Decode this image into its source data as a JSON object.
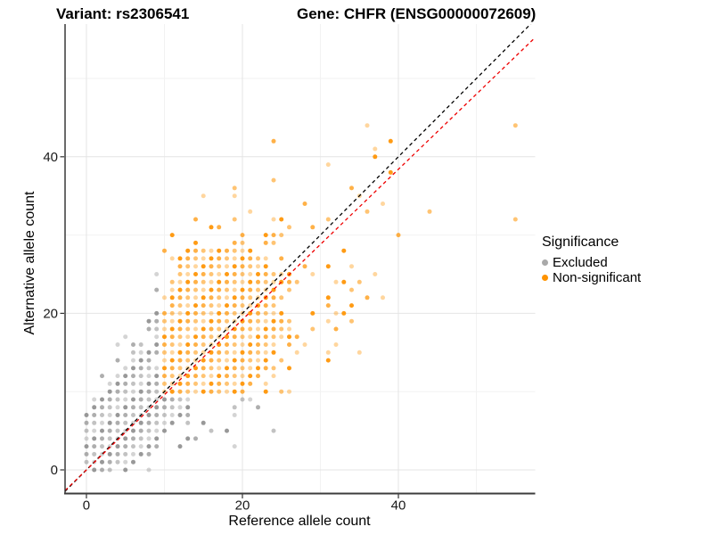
{
  "titles": {
    "variant": "Variant: rs2306541",
    "gene": "Gene: CHFR (ENSG00000072609)"
  },
  "legend": {
    "title": "Significance",
    "items": [
      {
        "label": "Excluded",
        "color": "#A9A9A9"
      },
      {
        "label": "Non-significant",
        "color": "#FF9300"
      }
    ]
  },
  "chart_data": {
    "type": "scatter",
    "title": "Variant: rs2306541 / Gene: CHFR (ENSG00000072609)",
    "xlabel": "Reference allele count",
    "ylabel": "Alternative allele count",
    "xlim": [
      -2.74,
      57.54
    ],
    "ylim": [
      -3.02,
      56.95
    ],
    "x_ticks": [
      0,
      20,
      40
    ],
    "y_ticks": [
      0,
      20,
      40
    ],
    "x_minor": [
      10,
      30,
      50
    ],
    "y_minor": [
      10,
      30,
      50
    ],
    "grid": "on",
    "legend_position": "right",
    "lines": [
      {
        "name": "identity",
        "color": "#000000",
        "slope": 1.0,
        "intercept": 0,
        "dashed": true
      },
      {
        "name": "fit",
        "color": "#EE0000",
        "slope": 0.96,
        "intercept": 0,
        "dashed": true
      }
    ],
    "series": [
      {
        "name": "Excluded",
        "color": "#8F8F8F",
        "rows": [
          {
            "y": 0,
            "x": [
              1,
              2,
              3,
              5,
              8
            ]
          },
          {
            "y": 1,
            "x": [
              0,
              1,
              2,
              3,
              4,
              5,
              6
            ]
          },
          {
            "y": 2,
            "x": [
              0,
              1,
              2,
              3,
              4,
              5,
              6,
              7,
              8
            ]
          },
          {
            "y": 3,
            "x": [
              0,
              1,
              2,
              3,
              4,
              5,
              6,
              7,
              8,
              9,
              12,
              19
            ]
          },
          {
            "y": 4,
            "x": [
              0,
              1,
              2,
              3,
              4,
              5,
              6,
              7,
              8,
              9,
              13,
              14
            ]
          },
          {
            "y": 5,
            "x": [
              0,
              1,
              2,
              3,
              4,
              5,
              6,
              7,
              8,
              9,
              10,
              16,
              18,
              24
            ]
          },
          {
            "y": 6,
            "x": [
              0,
              1,
              2,
              3,
              4,
              5,
              6,
              7,
              8,
              9,
              10,
              11,
              13,
              15
            ]
          },
          {
            "y": 7,
            "x": [
              0,
              1,
              2,
              3,
              4,
              5,
              6,
              7,
              8,
              9,
              10,
              11,
              12,
              13,
              19
            ]
          },
          {
            "y": 8,
            "x": [
              1,
              2,
              3,
              4,
              5,
              6,
              7,
              8,
              9,
              10,
              11,
              12,
              13,
              19,
              22
            ]
          },
          {
            "y": 9,
            "x": [
              1,
              2,
              3,
              4,
              5,
              6,
              7,
              8,
              9,
              10,
              11,
              12,
              13,
              20,
              21
            ]
          },
          {
            "y": 10,
            "x": [
              3,
              4,
              5,
              6,
              7,
              8,
              9
            ]
          },
          {
            "y": 11,
            "x": [
              3,
              4,
              5,
              6,
              7,
              8,
              9
            ]
          },
          {
            "y": 12,
            "x": [
              2,
              4,
              5,
              6,
              7,
              8,
              9
            ]
          },
          {
            "y": 13,
            "x": [
              5,
              6,
              7,
              8,
              9
            ]
          },
          {
            "y": 14,
            "x": [
              4,
              6,
              7,
              8
            ]
          },
          {
            "y": 15,
            "x": [
              6,
              7,
              8,
              9
            ]
          },
          {
            "y": 16,
            "x": [
              4,
              6,
              7,
              9
            ]
          },
          {
            "y": 17,
            "x": [
              5,
              9
            ]
          },
          {
            "y": 18,
            "x": [
              8,
              9
            ]
          },
          {
            "y": 19,
            "x": [
              8,
              9
            ]
          },
          {
            "y": 20,
            "x": [
              9
            ]
          },
          {
            "y": 23,
            "x": [
              9
            ]
          },
          {
            "y": 25,
            "x": [
              9
            ]
          }
        ]
      },
      {
        "name": "Non-significant",
        "color": "#FF9300",
        "rows": [
          {
            "y": 10,
            "x": [
              10,
              11,
              12,
              13,
              14,
              15,
              16,
              17,
              18,
              19,
              20,
              23,
              25,
              26
            ]
          },
          {
            "y": 11,
            "x": [
              10,
              11,
              12,
              13,
              14,
              15,
              16,
              17,
              18,
              19,
              20,
              21,
              23
            ]
          },
          {
            "y": 12,
            "x": [
              10,
              11,
              12,
              13,
              14,
              15,
              16,
              17,
              18,
              19,
              20,
              21,
              22,
              24
            ]
          },
          {
            "y": 13,
            "x": [
              10,
              11,
              12,
              13,
              14,
              15,
              16,
              17,
              18,
              19,
              20,
              21,
              22,
              23,
              24,
              26
            ]
          },
          {
            "y": 14,
            "x": [
              10,
              11,
              12,
              13,
              14,
              15,
              16,
              17,
              18,
              19,
              20,
              21,
              22,
              23,
              25,
              31
            ]
          },
          {
            "y": 15,
            "x": [
              10,
              11,
              12,
              13,
              14,
              15,
              16,
              17,
              18,
              19,
              20,
              21,
              22,
              23,
              24,
              27,
              31,
              35
            ]
          },
          {
            "y": 16,
            "x": [
              10,
              11,
              12,
              13,
              14,
              15,
              16,
              17,
              18,
              19,
              20,
              21,
              22,
              23,
              24,
              26,
              28,
              32
            ]
          },
          {
            "y": 17,
            "x": [
              10,
              11,
              12,
              13,
              14,
              15,
              16,
              17,
              18,
              19,
              20,
              21,
              22,
              23,
              24,
              25,
              26,
              27
            ]
          },
          {
            "y": 18,
            "x": [
              10,
              11,
              12,
              13,
              14,
              15,
              16,
              17,
              18,
              19,
              20,
              21,
              22,
              23,
              24,
              25,
              26,
              29,
              32
            ]
          },
          {
            "y": 19,
            "x": [
              10,
              11,
              12,
              13,
              14,
              15,
              16,
              17,
              18,
              19,
              20,
              21,
              22,
              23,
              24,
              25,
              26,
              31,
              34
            ]
          },
          {
            "y": 20,
            "x": [
              10,
              11,
              12,
              13,
              14,
              15,
              16,
              17,
              18,
              19,
              20,
              21,
              22,
              23,
              24,
              25,
              29,
              32,
              33
            ]
          },
          {
            "y": 21,
            "x": [
              11,
              12,
              13,
              14,
              15,
              16,
              17,
              18,
              19,
              20,
              21,
              22,
              23,
              24,
              31,
              34
            ]
          },
          {
            "y": 22,
            "x": [
              10,
              11,
              12,
              13,
              14,
              15,
              16,
              17,
              18,
              19,
              20,
              21,
              22,
              23,
              24,
              25,
              31,
              36,
              38
            ]
          },
          {
            "y": 23,
            "x": [
              11,
              12,
              13,
              14,
              15,
              16,
              17,
              18,
              19,
              20,
              21,
              22,
              23,
              24,
              26,
              34
            ]
          },
          {
            "y": 24,
            "x": [
              11,
              12,
              13,
              14,
              15,
              16,
              17,
              18,
              19,
              20,
              21,
              22,
              23,
              24,
              25,
              26,
              27,
              32,
              33,
              35
            ]
          },
          {
            "y": 25,
            "x": [
              12,
              13,
              14,
              15,
              16,
              17,
              18,
              19,
              20,
              21,
              22,
              23,
              24,
              25,
              26,
              29,
              37
            ]
          },
          {
            "y": 26,
            "x": [
              12,
              13,
              14,
              15,
              16,
              17,
              18,
              19,
              20,
              21,
              22,
              23,
              28,
              31,
              34
            ]
          },
          {
            "y": 27,
            "x": [
              11,
              12,
              13,
              14,
              15,
              16,
              17,
              18,
              19,
              20,
              21,
              22,
              23,
              25
            ]
          },
          {
            "y": 28,
            "x": [
              10,
              13,
              14,
              15,
              16,
              17,
              18,
              19,
              20,
              21,
              33
            ]
          },
          {
            "y": 29,
            "x": [
              14,
              19,
              20,
              23,
              24
            ]
          },
          {
            "y": 30,
            "x": [
              11,
              20,
              23,
              24,
              25,
              40
            ]
          },
          {
            "y": 31,
            "x": [
              16,
              17,
              26,
              29
            ]
          },
          {
            "y": 32,
            "x": [
              14,
              19,
              24,
              25,
              31,
              55
            ]
          },
          {
            "y": 33,
            "x": [
              21,
              36,
              44
            ]
          },
          {
            "y": 34,
            "x": [
              28,
              38
            ]
          },
          {
            "y": 35,
            "x": [
              15,
              19,
              35
            ]
          },
          {
            "y": 36,
            "x": [
              19,
              34
            ]
          },
          {
            "y": 37,
            "x": [
              24
            ]
          },
          {
            "y": 38,
            "x": [
              39
            ]
          },
          {
            "y": 39,
            "x": [
              31
            ]
          },
          {
            "y": 40,
            "x": [
              37
            ]
          },
          {
            "y": 41,
            "x": [
              37
            ]
          },
          {
            "y": 42,
            "x": [
              24,
              39
            ]
          },
          {
            "y": 44,
            "x": [
              36,
              55
            ]
          }
        ]
      }
    ]
  }
}
